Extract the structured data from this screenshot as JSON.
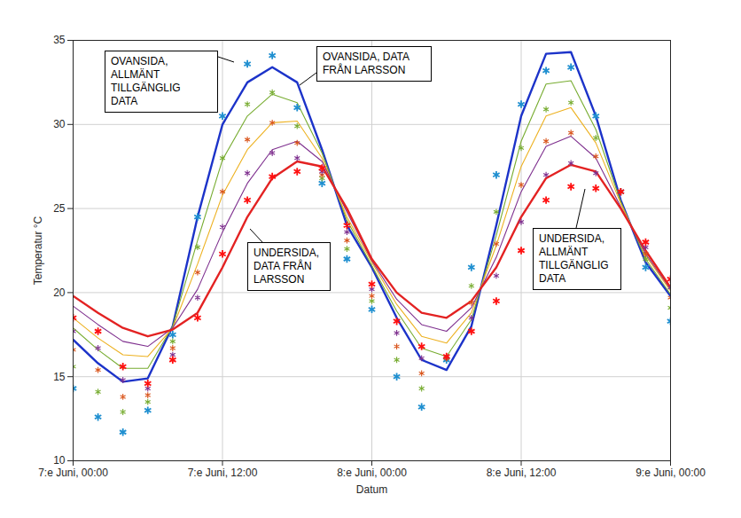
{
  "chart_data": {
    "type": "line",
    "xlabel": "Datum",
    "ylabel": "Temperatur °C",
    "grid": true,
    "x": [
      0,
      2,
      4,
      6,
      8,
      10,
      12,
      14,
      16,
      18,
      20,
      22,
      24,
      26,
      28,
      30,
      32,
      34,
      36,
      38,
      40,
      42,
      44,
      46,
      48
    ],
    "xlim": [
      0,
      48
    ],
    "xticks": [
      {
        "value": 0,
        "label": "7:e Juni, 00:00"
      },
      {
        "value": 12,
        "label": "7:e Juni, 12:00"
      },
      {
        "value": 24,
        "label": "8:e Juni, 00:00"
      },
      {
        "value": 36,
        "label": "8:e Juni, 12:00"
      },
      {
        "value": 48,
        "label": "9:e Juni, 00:00"
      }
    ],
    "ylim": [
      10,
      35
    ],
    "yticks": [
      10,
      15,
      20,
      25,
      30,
      35
    ],
    "series": [
      {
        "type": "line",
        "color": "#1c33c9",
        "values": [
          17.2,
          15.8,
          14.7,
          14.9,
          18.0,
          24.5,
          30.0,
          32.5,
          33.4,
          32.5,
          28.5,
          24.0,
          21.5,
          18.5,
          16.0,
          15.4,
          18.0,
          24.0,
          30.5,
          34.2,
          34.3,
          30.5,
          25.5,
          21.8,
          19.8
        ]
      },
      {
        "type": "line",
        "color": "#77ac30",
        "values": [
          17.9,
          16.6,
          15.5,
          15.5,
          18.0,
          23.1,
          27.9,
          30.5,
          31.8,
          31.3,
          28.3,
          24.3,
          21.6,
          18.9,
          16.7,
          16.2,
          18.4,
          23.4,
          29.0,
          32.4,
          32.6,
          29.7,
          25.4,
          22.0,
          19.9
        ]
      },
      {
        "type": "line",
        "color": "#edb120",
        "values": [
          18.5,
          17.3,
          16.3,
          16.2,
          17.9,
          21.7,
          25.8,
          28.5,
          30.1,
          30.2,
          28.0,
          24.5,
          21.8,
          19.3,
          17.4,
          17.0,
          18.8,
          22.8,
          27.5,
          30.5,
          31.0,
          28.9,
          25.3,
          22.2,
          20.1
        ]
      },
      {
        "type": "line",
        "color": "#7e2f8e",
        "values": [
          19.2,
          18.1,
          17.1,
          16.8,
          17.9,
          20.2,
          23.6,
          26.5,
          28.5,
          29.0,
          27.8,
          24.8,
          21.9,
          19.6,
          18.1,
          17.7,
          19.1,
          22.1,
          26.0,
          28.7,
          29.3,
          28.0,
          25.1,
          22.3,
          20.2
        ]
      },
      {
        "type": "line",
        "color": "#e32222",
        "values": [
          19.8,
          18.8,
          17.9,
          17.4,
          17.8,
          18.8,
          21.5,
          24.5,
          26.8,
          27.8,
          27.5,
          25.0,
          22.0,
          20.0,
          18.8,
          18.5,
          19.5,
          21.5,
          24.5,
          26.8,
          27.6,
          27.2,
          25.0,
          22.5,
          20.3
        ]
      },
      {
        "type": "scatter",
        "marker": "asterisk",
        "color": "#1f8fd0",
        "values": [
          14.3,
          12.6,
          11.7,
          13.0,
          17.5,
          24.5,
          30.5,
          33.6,
          34.1,
          31.0,
          26.5,
          22.0,
          19.0,
          15.0,
          13.2,
          16.0,
          21.5,
          27.0,
          31.2,
          33.2,
          33.4,
          30.5,
          26.0,
          21.5,
          18.3
        ]
      },
      {
        "type": "scatter",
        "marker": "asterisk",
        "color": "#77ac30",
        "values": [
          15.6,
          14.1,
          12.9,
          13.5,
          17.1,
          22.7,
          28.0,
          31.2,
          31.9,
          29.9,
          26.8,
          22.6,
          19.5,
          16.0,
          14.3,
          16.1,
          20.4,
          24.8,
          28.6,
          30.9,
          31.3,
          29.2,
          26.0,
          22.0,
          19.1
        ]
      },
      {
        "type": "scatter",
        "marker": "asterisk",
        "color": "#d95319",
        "values": [
          16.6,
          15.4,
          13.8,
          13.9,
          16.7,
          21.2,
          26.0,
          29.1,
          30.1,
          28.9,
          27.0,
          23.1,
          19.8,
          16.8,
          15.2,
          16.1,
          19.4,
          22.9,
          26.4,
          29.0,
          29.5,
          28.1,
          26.0,
          22.3,
          19.7
        ]
      },
      {
        "type": "scatter",
        "marker": "asterisk",
        "color": "#7e2f8e",
        "values": [
          17.7,
          16.7,
          14.8,
          14.3,
          16.3,
          19.7,
          23.9,
          27.1,
          28.3,
          28.0,
          27.2,
          23.6,
          20.2,
          17.6,
          16.1,
          16.2,
          18.5,
          21.0,
          24.2,
          27.0,
          27.7,
          27.1,
          26.0,
          22.7,
          20.3
        ]
      },
      {
        "type": "scatter",
        "marker": "asterisk",
        "color": "#ff1010",
        "values": [
          18.5,
          17.7,
          15.6,
          14.6,
          16.0,
          18.5,
          22.3,
          25.5,
          26.9,
          27.2,
          27.4,
          24.0,
          20.5,
          18.3,
          16.8,
          16.2,
          17.7,
          19.5,
          22.5,
          25.5,
          26.3,
          26.2,
          26.0,
          23.0,
          20.8
        ]
      }
    ],
    "annotations": [
      {
        "text": "OVANSIDA,\nALLMÄNT\nTILLGÄNGLIG\nDATA"
      },
      {
        "text": "OVANSIDA, DATA\nFRÅN LARSSON"
      },
      {
        "text": "UNDERSIDA,\nDATA FRÅN\nLARSSON"
      },
      {
        "text": "UNDERSIDA,\nALLMÄNT\nTILLGÄNGLIG\nDATA"
      }
    ]
  }
}
